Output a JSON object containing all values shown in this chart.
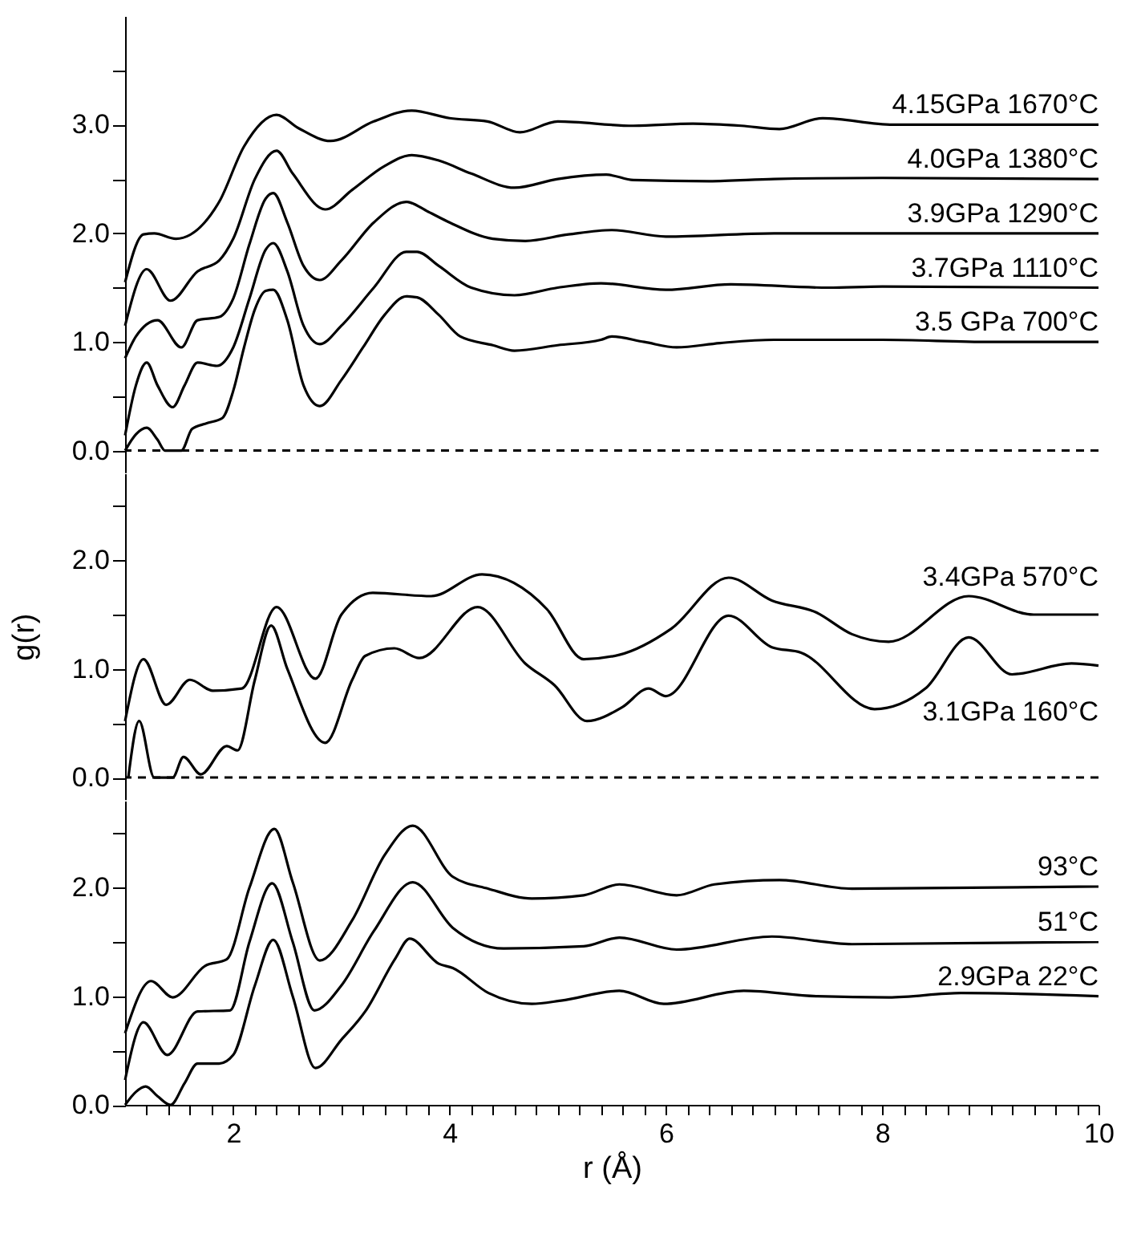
{
  "chart_data": [
    {
      "type": "line",
      "xlim": [
        1,
        10
      ],
      "ylim": [
        -0.2,
        4.0
      ],
      "tick_labels": "y",
      "grid": false,
      "line_style": "solid",
      "yticks": [
        {
          "value": 0,
          "label": "0.0"
        },
        {
          "value": 0.5,
          "label": null
        },
        {
          "value": 1,
          "label": "1.0"
        },
        {
          "value": 1.5,
          "label": null
        },
        {
          "value": 2,
          "label": "2.0"
        },
        {
          "value": 2.5,
          "label": null
        },
        {
          "value": 3,
          "label": "3.0"
        },
        {
          "value": 3.5,
          "label": null
        }
      ],
      "ref_lines": [
        {
          "axis": "y",
          "value": 0,
          "label": null,
          "color": "#000000",
          "line_style": "dashed"
        }
      ],
      "series": [
        {
          "name": "3.5 GPa 700°C",
          "color": "#000000",
          "x": [
            1.0,
            1.1,
            1.2,
            1.3,
            1.37,
            1.52,
            1.62,
            1.75,
            1.9,
            2.0,
            2.1,
            2.2,
            2.3,
            2.37,
            2.5,
            2.65,
            2.8,
            3.0,
            3.2,
            3.4,
            3.6,
            3.7,
            3.9,
            4.1,
            4.4,
            4.6,
            5.0,
            5.4,
            5.5,
            5.8,
            6.1,
            6.5,
            7.0,
            8.0,
            9.0,
            10
          ],
          "values": [
            0,
            0.15,
            0.21,
            0.1,
            0,
            0,
            0.2,
            0.25,
            0.3,
            0.55,
            0.95,
            1.3,
            1.47,
            1.48,
            1.2,
            0.6,
            0.41,
            0.65,
            0.95,
            1.25,
            1.42,
            1.41,
            1.25,
            1.05,
            0.97,
            0.92,
            0.97,
            1.02,
            1.05,
            1.0,
            0.95,
            0.99,
            1.02,
            1.02,
            1.0,
            1.0
          ]
        },
        {
          "name": "3.7GPa 1110°C",
          "color": "#000000",
          "x": [
            1.0,
            1.1,
            1.2,
            1.3,
            1.44,
            1.55,
            1.67,
            1.85,
            2.0,
            2.15,
            2.3,
            2.37,
            2.5,
            2.65,
            2.8,
            3.0,
            3.3,
            3.6,
            3.7,
            3.9,
            4.2,
            4.6,
            5.0,
            5.4,
            6.0,
            6.6,
            7.5,
            8.0,
            10
          ],
          "values": [
            0.14,
            0.6,
            0.81,
            0.6,
            0.4,
            0.6,
            0.81,
            0.78,
            0.95,
            1.4,
            1.85,
            1.91,
            1.65,
            1.15,
            0.98,
            1.15,
            1.5,
            1.83,
            1.83,
            1.7,
            1.5,
            1.43,
            1.5,
            1.54,
            1.48,
            1.53,
            1.5,
            1.51,
            1.5
          ]
        },
        {
          "name": "3.9GPa  1290°C",
          "color": "#000000",
          "x": [
            1.0,
            1.1,
            1.3,
            1.52,
            1.67,
            1.87,
            2.0,
            2.15,
            2.3,
            2.37,
            2.5,
            2.65,
            2.8,
            3.0,
            3.3,
            3.6,
            3.8,
            4.0,
            4.4,
            4.7,
            5.1,
            5.5,
            6.0,
            7.0,
            10
          ],
          "values": [
            0.85,
            1.05,
            1.2,
            0.95,
            1.2,
            1.23,
            1.4,
            1.9,
            2.32,
            2.37,
            2.1,
            1.7,
            1.57,
            1.75,
            2.1,
            2.29,
            2.2,
            2.1,
            1.95,
            1.93,
            1.99,
            2.03,
            1.97,
            2.0,
            2.0
          ]
        },
        {
          "name": "4.0GPa  1380°C",
          "color": "#000000",
          "x": [
            1.0,
            1.2,
            1.42,
            1.67,
            1.87,
            2.0,
            2.2,
            2.4,
            2.55,
            2.85,
            3.1,
            3.4,
            3.65,
            3.9,
            4.2,
            4.6,
            5.0,
            5.45,
            5.7,
            6.4,
            7.0,
            8.0,
            10
          ],
          "values": [
            1.15,
            1.67,
            1.38,
            1.65,
            1.75,
            1.95,
            2.5,
            2.76,
            2.55,
            2.22,
            2.4,
            2.62,
            2.72,
            2.67,
            2.55,
            2.42,
            2.5,
            2.54,
            2.49,
            2.48,
            2.5,
            2.51,
            2.5
          ]
        },
        {
          "name": "4.15GPa  1670°C",
          "color": "#000000",
          "x": [
            1.0,
            1.17,
            1.27,
            1.47,
            1.87,
            2.1,
            2.4,
            2.6,
            2.9,
            3.3,
            3.65,
            4.0,
            4.35,
            4.65,
            5.0,
            5.7,
            6.25,
            6.7,
            7.05,
            7.45,
            8.1,
            10
          ],
          "values": [
            1.55,
            1.99,
            2.0,
            1.95,
            2.29,
            2.8,
            3.09,
            2.97,
            2.85,
            3.03,
            3.13,
            3.06,
            3.03,
            2.93,
            3.03,
            2.99,
            3.01,
            2.99,
            2.96,
            3.06,
            3.0,
            3.0
          ]
        }
      ]
    },
    {
      "type": "line",
      "xlim": [
        1,
        10
      ],
      "ylim": [
        -0.2,
        2.8
      ],
      "tick_labels": "y",
      "grid": false,
      "line_style": "solid",
      "ylabel": "g(r)",
      "yticks": [
        {
          "value": 0,
          "label": "0.0"
        },
        {
          "value": 0.5,
          "label": null
        },
        {
          "value": 1,
          "label": "1.0"
        },
        {
          "value": 1.5,
          "label": null
        },
        {
          "value": 2,
          "label": "2.0"
        },
        {
          "value": 2.5,
          "label": null
        }
      ],
      "ref_lines": [
        {
          "axis": "y",
          "value": 0,
          "label": null,
          "color": "#000000",
          "line_style": "dashed"
        }
      ],
      "series": [
        {
          "name": "3.1GPa 160°C",
          "color": "#000000",
          "x": [
            1.03,
            1.13,
            1.27,
            1.44,
            1.54,
            1.7,
            1.94,
            2.04,
            2.2,
            2.35,
            2.5,
            2.85,
            3.1,
            3.22,
            3.49,
            3.72,
            4.26,
            4.7,
            4.97,
            5.27,
            5.6,
            5.84,
            6.0,
            6.58,
            6.98,
            7.25,
            7.93,
            8.4,
            8.8,
            9.2,
            9.75,
            10
          ],
          "values": [
            0,
            0.52,
            0,
            0,
            0.19,
            0.03,
            0.29,
            0.25,
            0.9,
            1.4,
            1.0,
            0.32,
            0.9,
            1.12,
            1.19,
            1.1,
            1.57,
            1.05,
            0.85,
            0.52,
            0.65,
            0.82,
            0.75,
            1.49,
            1.2,
            1.15,
            0.63,
            0.82,
            1.29,
            0.95,
            1.05,
            1.03
          ]
        },
        {
          "name": "3.4GPa 570°C",
          "color": "#000000",
          "x": [
            1.0,
            1.17,
            1.38,
            1.6,
            1.81,
            2.08,
            2.4,
            2.76,
            3.0,
            3.29,
            3.83,
            4.3,
            4.9,
            5.24,
            5.57,
            6.05,
            6.58,
            6.98,
            7.39,
            7.72,
            8.06,
            8.8,
            9.4,
            10
          ],
          "values": [
            0.52,
            1.09,
            0.67,
            0.9,
            0.8,
            0.82,
            1.57,
            0.91,
            1.5,
            1.7,
            1.67,
            1.87,
            1.55,
            1.09,
            1.13,
            1.37,
            1.84,
            1.63,
            1.52,
            1.32,
            1.25,
            1.67,
            1.5,
            1.5
          ]
        }
      ]
    },
    {
      "type": "line",
      "xlim": [
        1,
        10
      ],
      "ylim": [
        0,
        2.8
      ],
      "grid": false,
      "line_style": "solid",
      "xlabel": "r (Å)",
      "xticks": [
        {
          "value": 1.2,
          "label": null
        },
        {
          "value": 1.4,
          "label": null
        },
        {
          "value": 1.6,
          "label": null
        },
        {
          "value": 1.8,
          "label": null
        },
        2,
        {
          "value": 2.2,
          "label": null
        },
        {
          "value": 2.4,
          "label": null
        },
        {
          "value": 2.6,
          "label": null
        },
        {
          "value": 2.8,
          "label": null
        },
        {
          "value": 3,
          "label": null
        },
        {
          "value": 3.2,
          "label": null
        },
        {
          "value": 3.4,
          "label": null
        },
        {
          "value": 3.6,
          "label": null
        },
        {
          "value": 3.8,
          "label": null
        },
        4,
        {
          "value": 4.2,
          "label": null
        },
        {
          "value": 4.4,
          "label": null
        },
        {
          "value": 4.6,
          "label": null
        },
        {
          "value": 4.8,
          "label": null
        },
        {
          "value": 5,
          "label": null
        },
        {
          "value": 5.2,
          "label": null
        },
        {
          "value": 5.4,
          "label": null
        },
        {
          "value": 5.6,
          "label": null
        },
        {
          "value": 5.8,
          "label": null
        },
        6,
        {
          "value": 6.2,
          "label": null
        },
        {
          "value": 6.4,
          "label": null
        },
        {
          "value": 6.6,
          "label": null
        },
        {
          "value": 6.8,
          "label": null
        },
        {
          "value": 7,
          "label": null
        },
        {
          "value": 7.2,
          "label": null
        },
        {
          "value": 7.4,
          "label": null
        },
        {
          "value": 7.6,
          "label": null
        },
        {
          "value": 7.8,
          "label": null
        },
        8,
        {
          "value": 8.2,
          "label": null
        },
        {
          "value": 8.4,
          "label": null
        },
        {
          "value": 8.6,
          "label": null
        },
        {
          "value": 8.8,
          "label": null
        },
        {
          "value": 9,
          "label": null
        },
        {
          "value": 9.2,
          "label": null
        },
        {
          "value": 9.4,
          "label": null
        },
        {
          "value": 9.6,
          "label": null
        },
        {
          "value": 9.8,
          "label": null
        },
        10
      ],
      "yticks": [
        {
          "value": 0,
          "label": "0.0"
        },
        {
          "value": 0.5,
          "label": null
        },
        {
          "value": 1,
          "label": "1.0"
        },
        {
          "value": 1.5,
          "label": null
        },
        {
          "value": 2,
          "label": "2.0"
        },
        {
          "value": 2.5,
          "label": null
        }
      ],
      "series": [
        {
          "name": "2.9GPa  22°C",
          "color": "#000000",
          "x": [
            1.0,
            1.1,
            1.19,
            1.3,
            1.42,
            1.55,
            1.67,
            1.87,
            2.0,
            2.2,
            2.37,
            2.55,
            2.76,
            3.0,
            3.22,
            3.5,
            3.63,
            3.9,
            4.03,
            4.36,
            4.76,
            5.03,
            5.57,
            5.98,
            6.72,
            7.4,
            8.06,
            8.73,
            10
          ],
          "values": [
            0,
            0.12,
            0.17,
            0.08,
            0,
            0.2,
            0.38,
            0.38,
            0.46,
            1.1,
            1.52,
            1.0,
            0.34,
            0.6,
            0.86,
            1.35,
            1.53,
            1.3,
            1.26,
            1.03,
            0.93,
            0.96,
            1.05,
            0.93,
            1.05,
            1.0,
            0.99,
            1.03,
            1.0
          ]
        },
        {
          "name": "51°C",
          "color": "#000000",
          "x": [
            1.0,
            1.17,
            1.39,
            1.67,
            1.97,
            2.15,
            2.36,
            2.55,
            2.75,
            3.0,
            3.3,
            3.66,
            4.03,
            4.5,
            5.24,
            5.57,
            6.1,
            6.98,
            7.72,
            10
          ],
          "values": [
            0.23,
            0.76,
            0.46,
            0.86,
            0.87,
            1.5,
            2.04,
            1.5,
            0.87,
            1.1,
            1.6,
            2.05,
            1.63,
            1.44,
            1.46,
            1.54,
            1.43,
            1.55,
            1.48,
            1.5
          ]
        },
        {
          "name": "93°C",
          "color": "#000000",
          "x": [
            1.0,
            1.24,
            1.44,
            1.74,
            1.94,
            2.15,
            2.38,
            2.55,
            2.8,
            3.1,
            3.4,
            3.66,
            4.03,
            4.36,
            4.76,
            5.24,
            5.57,
            6.1,
            6.45,
            7.05,
            7.72,
            10
          ],
          "values": [
            0.66,
            1.14,
            0.99,
            1.28,
            1.34,
            2.0,
            2.54,
            2.05,
            1.33,
            1.7,
            2.3,
            2.57,
            2.1,
            1.99,
            1.9,
            1.93,
            2.03,
            1.93,
            2.03,
            2.07,
            1.99,
            2.01
          ]
        }
      ]
    }
  ]
}
